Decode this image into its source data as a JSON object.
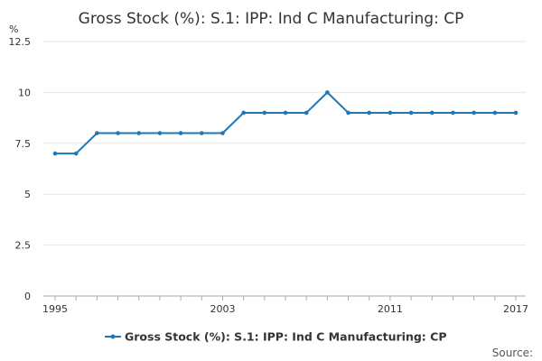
{
  "chart_data": {
    "type": "line",
    "title": "Gross Stock (%): S.1: IPP: Ind C Manufacturing: CP",
    "ylabel": "%",
    "xlabel": "",
    "ylim": [
      0,
      12.5
    ],
    "xlim": [
      1995,
      2017
    ],
    "yticks": [
      "0",
      "2.5",
      "5",
      "7.5",
      "10",
      "12.5"
    ],
    "xtick_labels": [
      "1995",
      "2003",
      "2011",
      "2017"
    ],
    "grid": true,
    "legend_position": "bottom-center",
    "x": [
      1995,
      1996,
      1997,
      1998,
      1999,
      2000,
      2001,
      2002,
      2003,
      2004,
      2005,
      2006,
      2007,
      2008,
      2009,
      2010,
      2011,
      2012,
      2013,
      2014,
      2015,
      2016,
      2017
    ],
    "series": [
      {
        "name": "Gross Stock (%): S.1: IPP: Ind C Manufacturing: CP",
        "color": "#1f77b4",
        "values": [
          7,
          7,
          8,
          8,
          8,
          8,
          8,
          8,
          8,
          9,
          9,
          9,
          9,
          10,
          9,
          9,
          9,
          9,
          9,
          9,
          9,
          9,
          9
        ]
      }
    ]
  },
  "footer": {
    "source_label": "Source:"
  }
}
